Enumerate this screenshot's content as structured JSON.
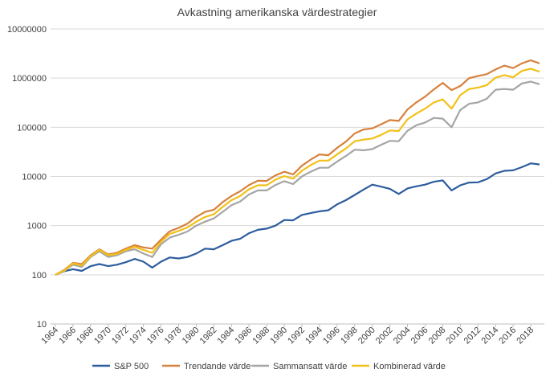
{
  "chart_data": {
    "type": "line",
    "title": "Avkastning amerikanska värdestrategier",
    "xlabel": "",
    "ylabel": "",
    "yscale": "log",
    "ylim": [
      10,
      10000000
    ],
    "y_ticks": [
      "10",
      "100",
      "1000",
      "10000",
      "100000",
      "1000000",
      "10000000"
    ],
    "x_ticks": [
      "1964",
      "1966",
      "1968",
      "1970",
      "1972",
      "1974",
      "1976",
      "1978",
      "1980",
      "1982",
      "1984",
      "1986",
      "1988",
      "1990",
      "1992",
      "1994",
      "1996",
      "1998",
      "2000",
      "2002",
      "2004",
      "2006",
      "2008",
      "2010",
      "2012",
      "2014",
      "2016",
      "2018"
    ],
    "x": [
      1964,
      1965,
      1966,
      1967,
      1968,
      1969,
      1970,
      1971,
      1972,
      1973,
      1974,
      1975,
      1976,
      1977,
      1978,
      1979,
      1980,
      1981,
      1982,
      1983,
      1984,
      1985,
      1986,
      1987,
      1988,
      1989,
      1990,
      1991,
      1992,
      1993,
      1994,
      1995,
      1996,
      1997,
      1998,
      1999,
      2000,
      2001,
      2002,
      2003,
      2004,
      2005,
      2006,
      2007,
      2008,
      2009,
      2010,
      2011,
      2012,
      2013,
      2014,
      2015,
      2016,
      2017,
      2018,
      2019
    ],
    "grid": true,
    "legend_position": "bottom",
    "series": [
      {
        "name": "S&P 500",
        "color": "#2e5d9e",
        "values": [
          100,
          118,
          130,
          120,
          150,
          165,
          150,
          160,
          180,
          210,
          185,
          140,
          185,
          225,
          215,
          230,
          270,
          340,
          330,
          400,
          490,
          540,
          700,
          820,
          870,
          1000,
          1300,
          1280,
          1650,
          1800,
          1950,
          2050,
          2700,
          3300,
          4200,
          5400,
          6800,
          6200,
          5600,
          4400,
          5700,
          6300,
          6800,
          7800,
          8300,
          5200,
          6600,
          7500,
          7600,
          8800,
          11500,
          13000,
          13300,
          15500,
          18500,
          17500
        ]
      },
      {
        "name": "Trendande värde",
        "color": "#d8813c",
        "values": [
          100,
          125,
          175,
          165,
          250,
          330,
          260,
          280,
          340,
          400,
          360,
          340,
          520,
          770,
          900,
          1100,
          1500,
          1900,
          2100,
          3000,
          4000,
          5000,
          6700,
          8200,
          8100,
          10500,
          12500,
          11000,
          16500,
          22000,
          28000,
          27000,
          38000,
          51000,
          75000,
          90000,
          95000,
          115000,
          140000,
          135000,
          230000,
          320000,
          420000,
          590000,
          800000,
          570000,
          690000,
          1000000,
          1100000,
          1200000,
          1500000,
          1800000,
          1600000,
          2000000,
          2300000,
          2000000
        ]
      },
      {
        "name": "Sammansatt värde",
        "color": "#a5a5a5",
        "values": [
          100,
          120,
          160,
          145,
          230,
          300,
          230,
          250,
          300,
          330,
          270,
          230,
          420,
          570,
          650,
          760,
          1000,
          1200,
          1400,
          1900,
          2600,
          3100,
          4300,
          5200,
          5200,
          6700,
          8000,
          7000,
          10000,
          12500,
          15000,
          15000,
          20000,
          26000,
          35000,
          34000,
          36000,
          44000,
          53000,
          52000,
          85000,
          110000,
          125000,
          155000,
          150000,
          100000,
          225000,
          300000,
          320000,
          380000,
          580000,
          600000,
          580000,
          780000,
          850000,
          750000
        ]
      },
      {
        "name": "Kombinerad värde",
        "color": "#f2c018",
        "values": [
          100,
          122,
          170,
          155,
          240,
          320,
          250,
          265,
          320,
          370,
          320,
          280,
          470,
          680,
          780,
          920,
          1200,
          1500,
          1700,
          2400,
          3300,
          4000,
          5500,
          6600,
          6600,
          8600,
          10200,
          9000,
          13000,
          17000,
          21000,
          21000,
          28000,
          37000,
          52000,
          56000,
          59000,
          70000,
          86000,
          84000,
          145000,
          190000,
          240000,
          320000,
          370000,
          240000,
          450000,
          600000,
          640000,
          720000,
          1020000,
          1150000,
          1040000,
          1400000,
          1550000,
          1350000
        ]
      }
    ]
  }
}
